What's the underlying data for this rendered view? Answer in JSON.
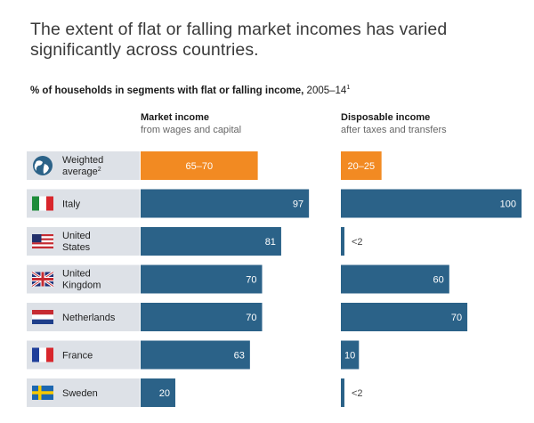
{
  "title": "The extent of flat or falling market incomes has varied significantly across countries.",
  "subtitle": {
    "main": "% of households in segments with flat or falling income,",
    "period": "2005–14",
    "period_footnote": "1"
  },
  "colors": {
    "highlight": "#f28a22",
    "bar": "#2b6288",
    "label_bg": "#dde1e7"
  },
  "chart_data": {
    "type": "bar",
    "orientation": "horizontal",
    "categories": [
      {
        "label": "Weighted average",
        "footnote": "2",
        "flag": "globe-icon",
        "highlight": true
      },
      {
        "label": "Italy",
        "flag": "italy-flag-icon",
        "highlight": false
      },
      {
        "label": "United States",
        "flag": "us-flag-icon",
        "highlight": false
      },
      {
        "label": "United Kingdom",
        "flag": "uk-flag-icon",
        "highlight": false
      },
      {
        "label": "Netherlands",
        "flag": "netherlands-flag-icon",
        "highlight": false
      },
      {
        "label": "France",
        "flag": "france-flag-icon",
        "highlight": false
      },
      {
        "label": "Sweden",
        "flag": "sweden-flag-icon",
        "highlight": false
      }
    ],
    "series": [
      {
        "name": "Market income",
        "subtitle": "from wages and capital",
        "values": [
          67.5,
          97,
          81,
          70,
          70,
          63,
          20
        ],
        "labels": [
          "65–70",
          "97",
          "81",
          "70",
          "70",
          "63",
          "20"
        ]
      },
      {
        "name": "Disposable income",
        "subtitle": "after taxes and transfers",
        "values": [
          22.5,
          100,
          1,
          60,
          70,
          10,
          1
        ],
        "labels": [
          "20–25",
          "100",
          "<2",
          "60",
          "70",
          "10",
          "<2"
        ]
      }
    ],
    "xlim": [
      0,
      100
    ]
  }
}
